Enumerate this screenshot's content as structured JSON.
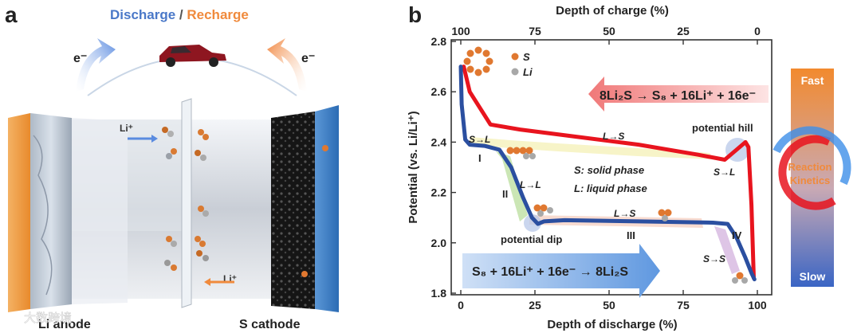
{
  "panel_a": {
    "label": "a",
    "title_discharge": "Discharge",
    "title_slash": " / ",
    "title_recharge": "Recharge",
    "electron_left": "e⁻",
    "electron_right": "e⁻",
    "li_ion_top": "Li⁺",
    "li_ion_bottom": "Li⁺",
    "anode_label": "Li anode",
    "cathode_label": "S cathode",
    "watermark": "大数跨境",
    "colors": {
      "discharge": "#4a78c8",
      "recharge": "#f08a3c",
      "anode": "#f0a050",
      "cathode_frame": "#3a7cc4"
    }
  },
  "panel_b": {
    "label": "b",
    "reaction_charge": "8Li₂S → S₈ + 16Li⁺ + 16e⁻",
    "reaction_discharge": "S₈ + 16Li⁺ + 16e⁻ → 8Li₂S",
    "legend_s": "S",
    "legend_li": "Li",
    "note_solid": "S:  solid phase",
    "note_liquid": "L:  liquid phase",
    "potential_hill": "potential hill",
    "potential_dip": "potential dip",
    "kinetics": {
      "fast": "Fast",
      "slow": "Slow",
      "line1": "Reaction",
      "line2": "Kinetics"
    },
    "colors": {
      "charge_curve": "#e8141e",
      "discharge_curve": "#2b4fa0"
    }
  },
  "chart_data": {
    "type": "line",
    "title": "",
    "xlabel": "Depth of discharge (%)",
    "x2label": "Depth of charge (%)",
    "ylabel": "Potential (vs. Li/Li⁺)",
    "xlim": [
      0,
      100
    ],
    "ylim": [
      1.8,
      2.8
    ],
    "x_ticks": [
      0,
      25,
      50,
      75,
      100
    ],
    "x2_ticks": [
      100,
      75,
      50,
      25,
      0
    ],
    "y_ticks": [
      1.8,
      2.0,
      2.2,
      2.4,
      2.6,
      2.8
    ],
    "series": [
      {
        "name": "Recharge",
        "x": [
          1,
          3,
          10,
          20,
          40,
          60,
          80,
          89,
          93,
          96,
          97,
          98,
          98.8
        ],
        "y": [
          2.7,
          2.6,
          2.47,
          2.45,
          2.42,
          2.39,
          2.35,
          2.33,
          2.37,
          2.4,
          2.38,
          2.15,
          1.86
        ]
      },
      {
        "name": "Discharge",
        "x": [
          0,
          0.3,
          1.5,
          3,
          8,
          13,
          17,
          21,
          24,
          26,
          28,
          35,
          60,
          85,
          90,
          93,
          96,
          98,
          99
        ],
        "y": [
          2.7,
          2.55,
          2.41,
          2.39,
          2.385,
          2.37,
          2.3,
          2.18,
          2.1,
          2.075,
          2.085,
          2.09,
          2.085,
          2.08,
          2.075,
          2.02,
          1.94,
          1.88,
          1.855
        ]
      }
    ],
    "region_labels": [
      "I",
      "II",
      "III",
      "IV"
    ],
    "transition_labels": [
      "S→L",
      "L→L",
      "L→S",
      "S→S",
      "L→S",
      "S→L"
    ]
  }
}
